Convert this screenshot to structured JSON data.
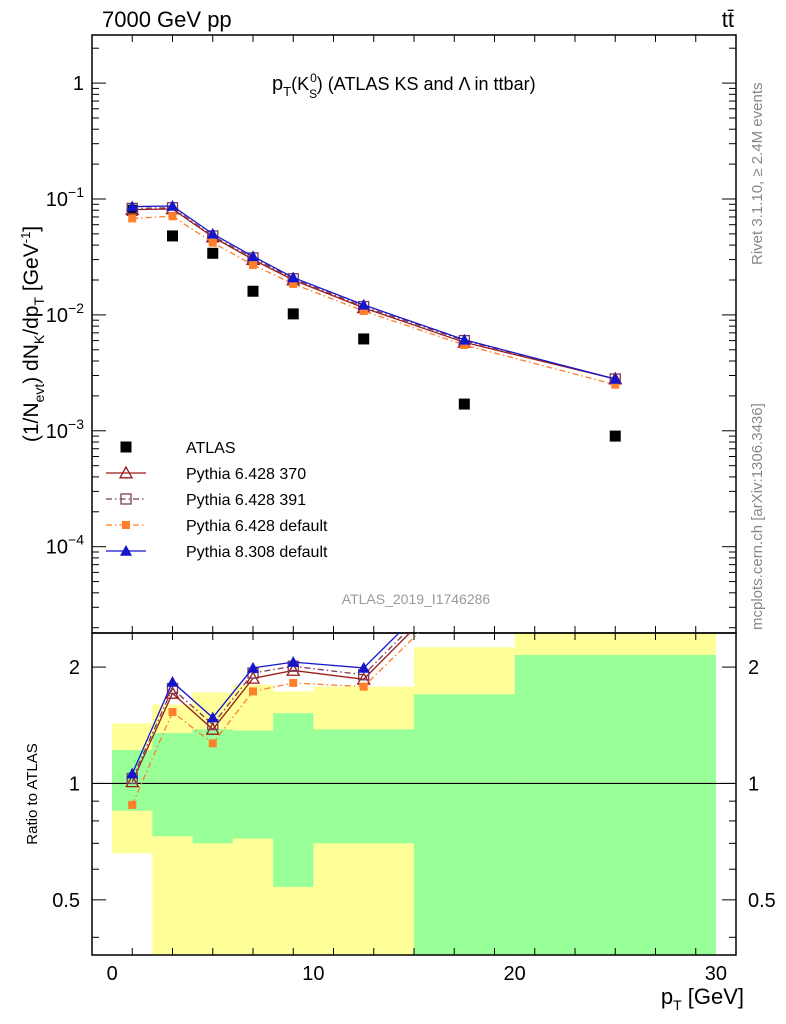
{
  "header": {
    "left": "7000 GeV pp",
    "right": "tt̄"
  },
  "side_labels": {
    "rivet": "Rivet 3.1.10, ≥ 2.4M events",
    "mcplots": "mcplots.cern.ch [arXiv:1306.3436]"
  },
  "chart_data": [
    {
      "type": "scatter",
      "panel": "main",
      "title_parts": [
        "p",
        "T",
        "(K",
        "S",
        "0",
        ") (ATLAS KS and ",
        "Λ",
        " in ttbar)"
      ],
      "watermark": "ATLAS_2019_I1746286",
      "ylabel_parts": [
        "(1/N",
        "evt",
        ") dN",
        "K",
        "/dp",
        "T",
        " [GeV",
        "-1",
        "]"
      ],
      "yscale": "log",
      "xlim": [
        -1,
        31
      ],
      "ylim": [
        1.8e-05,
        2.6
      ],
      "y_ticks": [
        {
          "value": 1,
          "base": "1",
          "exp": ""
        },
        {
          "value": 0.1,
          "base": "10",
          "exp": "−1"
        },
        {
          "value": 0.01,
          "base": "10",
          "exp": "−2"
        },
        {
          "value": 0.001,
          "base": "10",
          "exp": "−3"
        },
        {
          "value": 0.0001,
          "base": "10",
          "exp": "−4"
        }
      ],
      "legend_position": "bottom-left",
      "series": [
        {
          "name": "ATLAS",
          "color": "#000000",
          "marker": "square",
          "line": "none",
          "x": [
            1,
            3,
            5,
            7,
            9,
            12.5,
            17.5,
            25
          ],
          "y": [
            0.08,
            0.048,
            0.034,
            0.016,
            0.0102,
            0.0062,
            0.0017,
            0.0009
          ]
        },
        {
          "name": "Pythia 6.428 370",
          "color": "#9b1b1b",
          "marker": "triangle-open",
          "line": "solid",
          "x": [
            1,
            3,
            5,
            7,
            9,
            12.5,
            17.5,
            25
          ],
          "y": [
            0.081,
            0.082,
            0.047,
            0.03,
            0.02,
            0.0115,
            0.0058,
            0.0028
          ]
        },
        {
          "name": "Pythia 6.428 391",
          "color": "#7b3b5b",
          "marker": "square-open",
          "line": "dashdot",
          "x": [
            1,
            3,
            5,
            7,
            9,
            12.5,
            17.5,
            25
          ],
          "y": [
            0.083,
            0.084,
            0.048,
            0.031,
            0.0205,
            0.0118,
            0.006,
            0.0028
          ]
        },
        {
          "name": "Pythia 6.428 default",
          "color": "#ff7f2a",
          "marker": "square-small",
          "line": "dashdot",
          "x": [
            1,
            3,
            5,
            7,
            9,
            12.5,
            17.5,
            25
          ],
          "y": [
            0.068,
            0.071,
            0.042,
            0.027,
            0.0185,
            0.0108,
            0.0055,
            0.0025
          ]
        },
        {
          "name": "Pythia 8.308 default",
          "color": "#1515cc",
          "marker": "triangle",
          "line": "solid",
          "x": [
            1,
            3,
            5,
            7,
            9,
            12.5,
            17.5,
            25
          ],
          "y": [
            0.086,
            0.087,
            0.05,
            0.032,
            0.021,
            0.0122,
            0.0061,
            0.0028
          ]
        }
      ]
    },
    {
      "type": "line",
      "panel": "ratio",
      "ylabel": "Ratio to ATLAS",
      "xlabel_parts": [
        "p",
        "T",
        " [GeV]"
      ],
      "yscale": "log",
      "xlim": [
        -1,
        31
      ],
      "ylim": [
        0.36,
        2.45
      ],
      "x_ticks": [
        0,
        10,
        20,
        30
      ],
      "y_ticks": [
        0.5,
        1,
        2
      ],
      "uncertainty_bands": {
        "bins": [
          [
            0,
            2
          ],
          [
            2,
            4
          ],
          [
            4,
            6
          ],
          [
            6,
            8
          ],
          [
            8,
            10
          ],
          [
            10,
            15
          ],
          [
            15,
            20
          ],
          [
            20,
            30
          ]
        ],
        "yellow_low": [
          0.66,
          0.36,
          0.36,
          0.36,
          0.36,
          0.36,
          0.36,
          0.36
        ],
        "yellow_high": [
          1.43,
          1.6,
          1.72,
          1.8,
          1.73,
          1.78,
          2.25,
          2.45
        ],
        "green_low": [
          0.85,
          0.73,
          0.7,
          0.72,
          0.54,
          0.7,
          0.36,
          0.36
        ],
        "green_high": [
          1.22,
          1.35,
          1.38,
          1.37,
          1.52,
          1.38,
          1.7,
          2.15
        ],
        "yellow_color": "#ffff99",
        "green_color": "#99ff99"
      },
      "series": [
        {
          "name": "Pythia 6.428 370",
          "color": "#9b1b1b",
          "marker": "triangle-open",
          "line": "solid",
          "x": [
            1,
            3,
            5,
            7,
            9,
            12.5,
            17.5
          ],
          "y": [
            1.01,
            1.71,
            1.38,
            1.87,
            1.96,
            1.86,
            3.4
          ]
        },
        {
          "name": "Pythia 6.428 391",
          "color": "#7b3b5b",
          "marker": "square-open",
          "line": "dashdot",
          "x": [
            1,
            3,
            5,
            7,
            9,
            12.5,
            17.5
          ],
          "y": [
            1.03,
            1.76,
            1.42,
            1.93,
            2.01,
            1.91,
            3.5
          ]
        },
        {
          "name": "Pythia 6.428 default",
          "color": "#ff7f2a",
          "marker": "square-small",
          "line": "dashdot",
          "x": [
            1,
            3,
            5,
            7,
            9,
            12.5,
            17.5
          ],
          "y": [
            0.88,
            1.53,
            1.27,
            1.73,
            1.82,
            1.78,
            3.2
          ]
        },
        {
          "name": "Pythia 8.308 default",
          "color": "#1515cc",
          "marker": "triangle",
          "line": "solid",
          "x": [
            1,
            3,
            5,
            7,
            9,
            12.5,
            17.5
          ],
          "y": [
            1.06,
            1.83,
            1.48,
            1.99,
            2.06,
            1.99,
            3.6
          ]
        }
      ]
    }
  ]
}
